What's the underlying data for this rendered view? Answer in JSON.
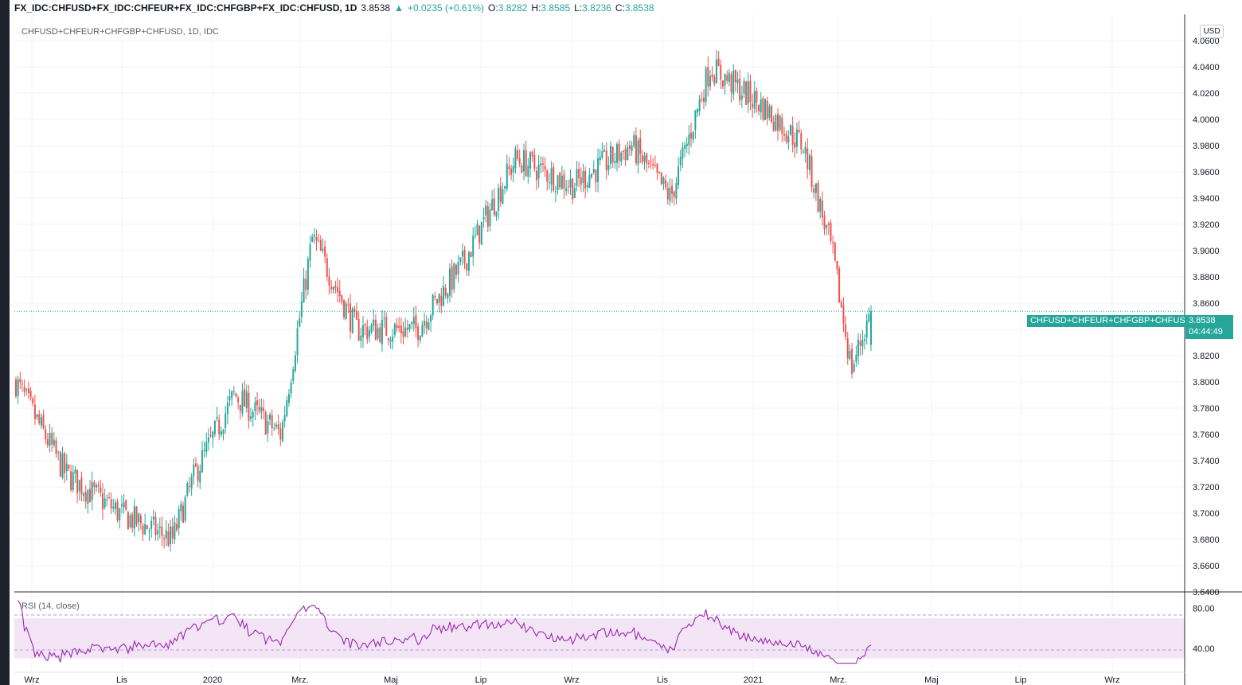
{
  "header": {
    "symbol": "FX_IDC:CHFUSD+FX_IDC:CHFEUR+FX_IDC:CHFGBP+FX_IDC:CHFUSD, 1D",
    "last": "3.8538",
    "change": "+0.0235 (+0.61%)",
    "o_label": "O:",
    "o_value": "3.8282",
    "h_label": "H:",
    "h_value": "3.8585",
    "l_label": "L:",
    "l_value": "3.8236",
    "c_label": "C:",
    "c_value": "3.8538",
    "up_arrow": "▲"
  },
  "legend": {
    "series_title": "CHFUSD+CHFEUR+CHFGBP+CHFUSD, 1D, IDC"
  },
  "currency_button": "USD",
  "price_tag": {
    "label": "CHFUSD+CHFEUR+CHFGBP+CHFUSD",
    "price": "3.8538",
    "countdown": "04:44:49"
  },
  "rsi": {
    "title": "RSI (14, close)",
    "upper": 70,
    "lower": 30,
    "ticks": [
      "80.00",
      "40.00"
    ]
  },
  "colors": {
    "up": "#26a69a",
    "down": "#ef5350",
    "rsi_line": "#9c27b0",
    "rsi_band": "#f3e5f5"
  },
  "chart_data": {
    "type": "candlestick",
    "title": "CHFUSD+CHFEUR+CHFGBP+CHFUSD, 1D, IDC",
    "y_ticks": [
      "4.0600",
      "4.0400",
      "4.0200",
      "4.0000",
      "3.9800",
      "3.9600",
      "3.9400",
      "3.9200",
      "3.9000",
      "3.8800",
      "3.8600",
      "3.8400",
      "3.8200",
      "3.8000",
      "3.7800",
      "3.7600",
      "3.7400",
      "3.7200",
      "3.7000",
      "3.6800",
      "3.6600",
      "3.6400"
    ],
    "ylim": [
      3.64,
      4.08
    ],
    "x_ticks": [
      "Wrz",
      "Lis",
      "2020",
      "Mrz.",
      "Maj",
      "Lip",
      "Wrz",
      "Lis",
      "2021",
      "Mrz.",
      "Maj",
      "Lip",
      "Wrz"
    ],
    "approx_close_path": [
      {
        "date": "2019-08-28",
        "close": 3.8
      },
      {
        "date": "2019-09-30",
        "close": 3.73
      },
      {
        "date": "2019-11-05",
        "close": 3.7
      },
      {
        "date": "2019-12-10",
        "close": 3.68
      },
      {
        "date": "2019-12-25",
        "close": 3.73
      },
      {
        "date": "2020-01-20",
        "close": 3.79
      },
      {
        "date": "2020-02-20",
        "close": 3.76
      },
      {
        "date": "2020-03-12",
        "close": 3.91
      },
      {
        "date": "2020-04-10",
        "close": 3.84
      },
      {
        "date": "2020-05-20",
        "close": 3.84
      },
      {
        "date": "2020-06-20",
        "close": 3.89
      },
      {
        "date": "2020-07-25",
        "close": 3.97
      },
      {
        "date": "2020-09-01",
        "close": 3.95
      },
      {
        "date": "2020-10-10",
        "close": 3.98
      },
      {
        "date": "2020-11-05",
        "close": 3.94
      },
      {
        "date": "2020-12-01",
        "close": 4.04
      },
      {
        "date": "2021-01-05",
        "close": 4.01
      },
      {
        "date": "2021-02-01",
        "close": 3.98
      },
      {
        "date": "2021-02-20",
        "close": 3.9
      },
      {
        "date": "2021-03-05",
        "close": 3.81
      },
      {
        "date": "2021-03-18",
        "close": 3.8538
      }
    ],
    "last_bar": {
      "open": 3.8282,
      "high": 3.8585,
      "low": 3.8236,
      "close": 3.8538
    }
  }
}
